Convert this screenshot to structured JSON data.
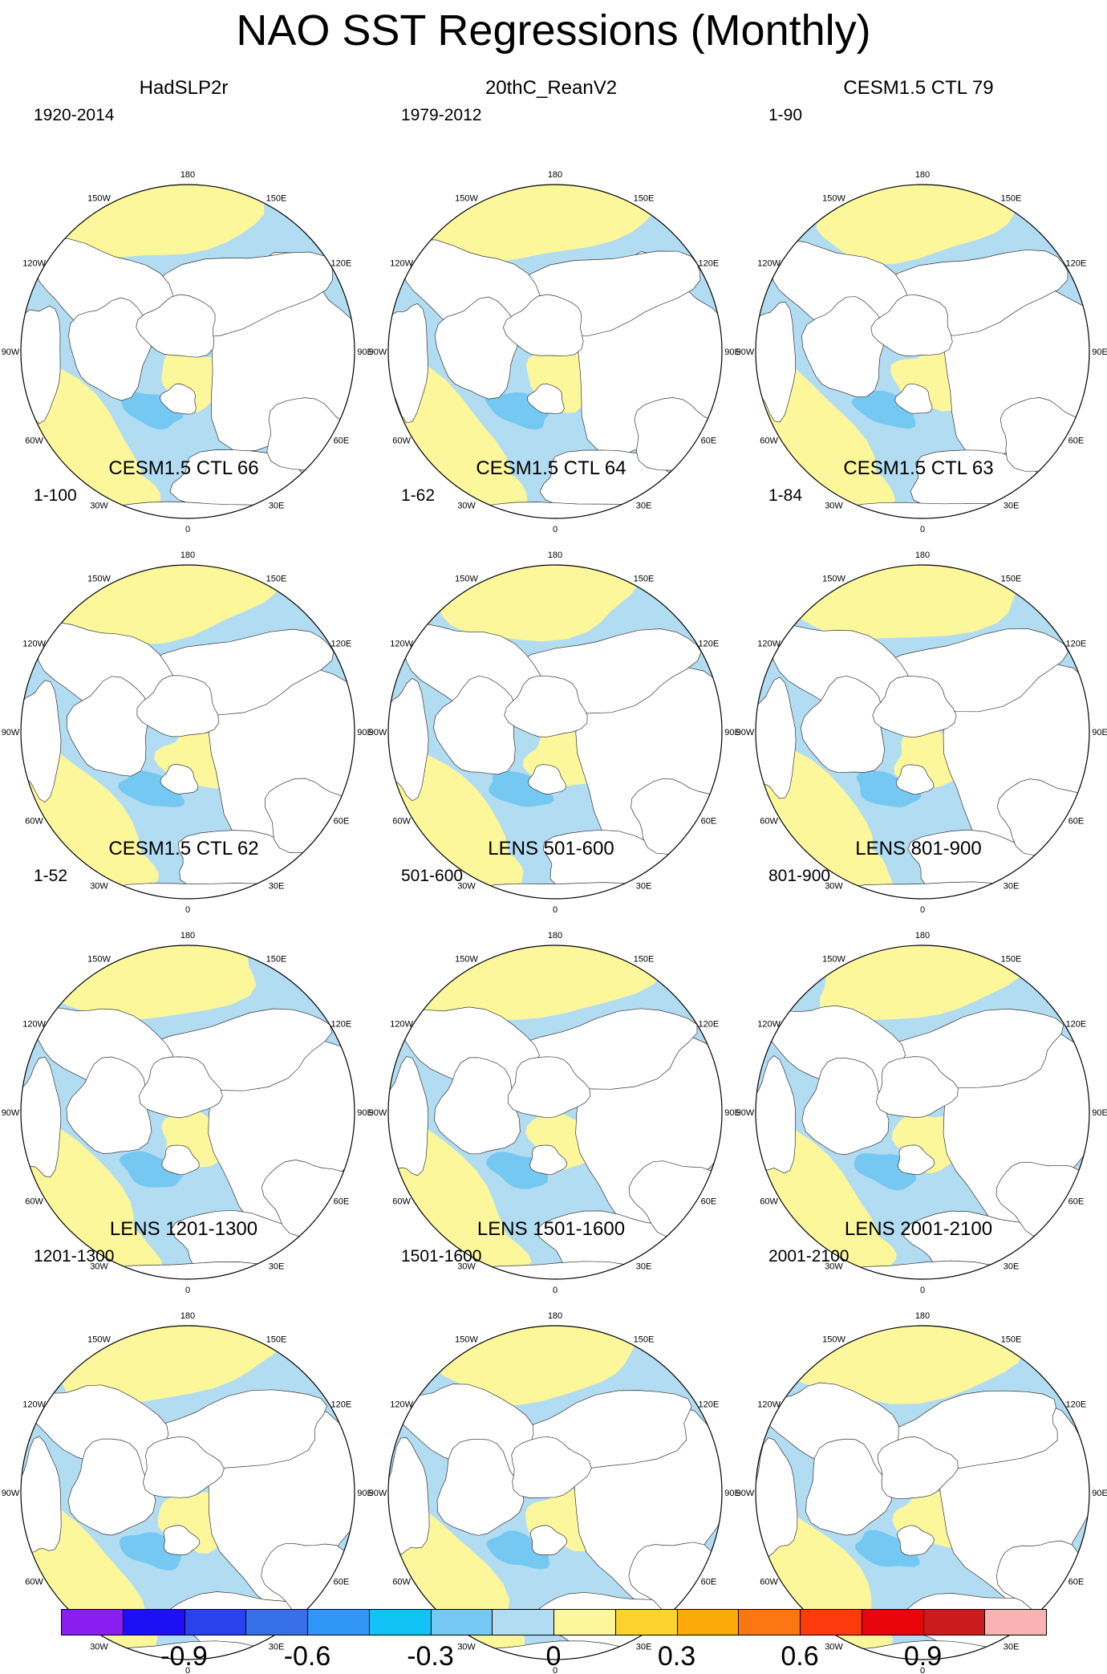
{
  "title": "NAO SST Regressions (Monthly)",
  "lon_labels": [
    "180",
    "150E",
    "120E",
    "90E",
    "60E",
    "30E",
    "0",
    "30W",
    "60W",
    "90W",
    "120W",
    "150W"
  ],
  "panels": [
    {
      "title": "HadSLP2r",
      "years": "1920-2014"
    },
    {
      "title": "20thC_ReanV2",
      "years": "1979-2012"
    },
    {
      "title": "CESM1.5 CTL 79",
      "years": "1-90"
    },
    {
      "title": "CESM1.5 CTL 66",
      "years": "1-100"
    },
    {
      "title": "CESM1.5 CTL 64",
      "years": "1-62"
    },
    {
      "title": "CESM1.5 CTL 63",
      "years": "1-84"
    },
    {
      "title": "CESM1.5 CTL 62",
      "years": "1-52"
    },
    {
      "title": "LENS 501-600",
      "years": "501-600"
    },
    {
      "title": "LENS 801-900",
      "years": "801-900"
    },
    {
      "title": "LENS 1201-1300",
      "years": "1201-1300"
    },
    {
      "title": "LENS 1501-1600",
      "years": "1501-1600"
    },
    {
      "title": "LENS 2001-2100",
      "years": "2001-2100"
    }
  ],
  "colorbar": {
    "colors": [
      "#8a1ef0",
      "#1c10f5",
      "#2a42ee",
      "#3670e8",
      "#2f97f5",
      "#12c2f7",
      "#74c8f2",
      "#b2dcf2",
      "#fdf79c",
      "#fcd32d",
      "#fca90a",
      "#fc7612",
      "#fc3a0c",
      "#e8050b",
      "#cc1b1b",
      "#f9b3b3"
    ],
    "tick_labels": [
      "-0.9",
      "-0.6",
      "-0.3",
      "0",
      "0.3",
      "0.6",
      "0.9"
    ]
  },
  "colors": {
    "positive": "#fdf79c",
    "negative": "#b2dcf2",
    "strong_negative": "#74c8f2",
    "strong_positive": "#fcd32d",
    "land": "#ffffff"
  }
}
